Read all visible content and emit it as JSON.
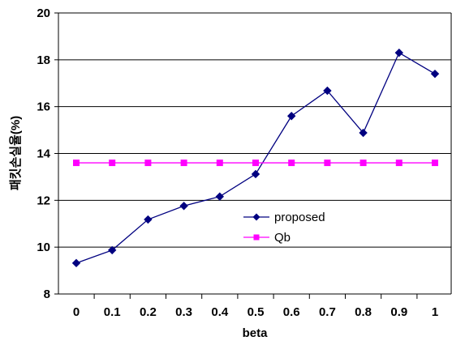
{
  "chart_data": {
    "type": "line",
    "title": "",
    "xlabel": "beta",
    "ylabel": "패킷손실율(%)",
    "categories": [
      "0",
      "0.1",
      "0.2",
      "0.3",
      "0.4",
      "0.5",
      "0.6",
      "0.7",
      "0.8",
      "0.9",
      "1"
    ],
    "ylim": [
      8,
      20
    ],
    "yticks": [
      8,
      10,
      12,
      14,
      16,
      18,
      20
    ],
    "grid": "horizontal",
    "legend_position": "center-right",
    "series": [
      {
        "name": "proposed",
        "color": "#000080",
        "marker": "diamond",
        "values": [
          9.32,
          9.87,
          11.18,
          11.76,
          12.16,
          13.12,
          15.6,
          16.68,
          14.88,
          18.3,
          17.4
        ]
      },
      {
        "name": "Qb",
        "color": "#ff00ff",
        "marker": "square",
        "values": [
          13.6,
          13.6,
          13.6,
          13.6,
          13.6,
          13.6,
          13.6,
          13.6,
          13.6,
          13.6,
          13.6
        ]
      }
    ]
  }
}
